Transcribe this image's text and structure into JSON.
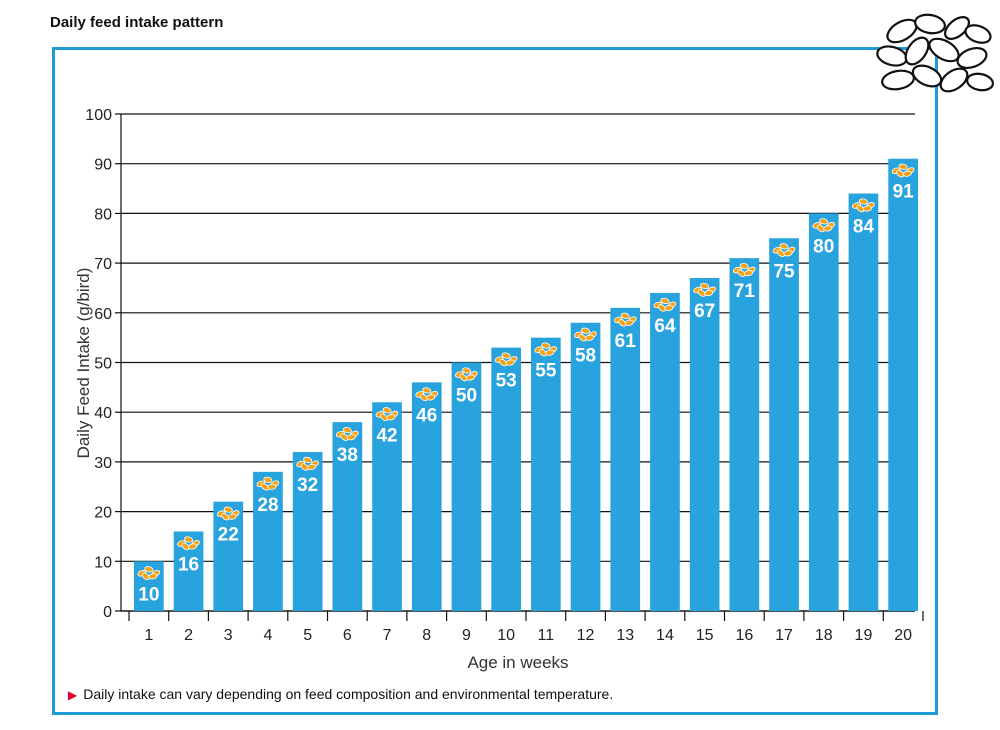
{
  "page_title": "Daily feed intake pattern",
  "footnote": "Daily intake can vary depending on feed composition and environmental temperature.",
  "decoration": {
    "grain_icon": "seeds-icon",
    "bar_icon": "feed-grain-icon"
  },
  "colors": {
    "bar": "#29a3de",
    "frame": "#1f9bd7",
    "bar_icon": "#f3a21b",
    "label": "#ffffff",
    "bullet": "#e4002b"
  },
  "chart_data": {
    "type": "bar",
    "title": "Daily feed intake pattern",
    "xlabel": "Age in weeks",
    "ylabel": "Daily Feed Intake (g/bird)",
    "ylim": [
      0,
      100
    ],
    "yticks": [
      0,
      10,
      20,
      30,
      40,
      50,
      60,
      70,
      80,
      90,
      100
    ],
    "grid": true,
    "categories": [
      "1",
      "2",
      "3",
      "4",
      "5",
      "6",
      "7",
      "8",
      "9",
      "10",
      "11",
      "12",
      "13",
      "14",
      "15",
      "16",
      "17",
      "18",
      "19",
      "20"
    ],
    "values": [
      10,
      16,
      22,
      28,
      32,
      38,
      42,
      46,
      50,
      53,
      55,
      58,
      61,
      64,
      67,
      71,
      75,
      80,
      84,
      91
    ]
  }
}
